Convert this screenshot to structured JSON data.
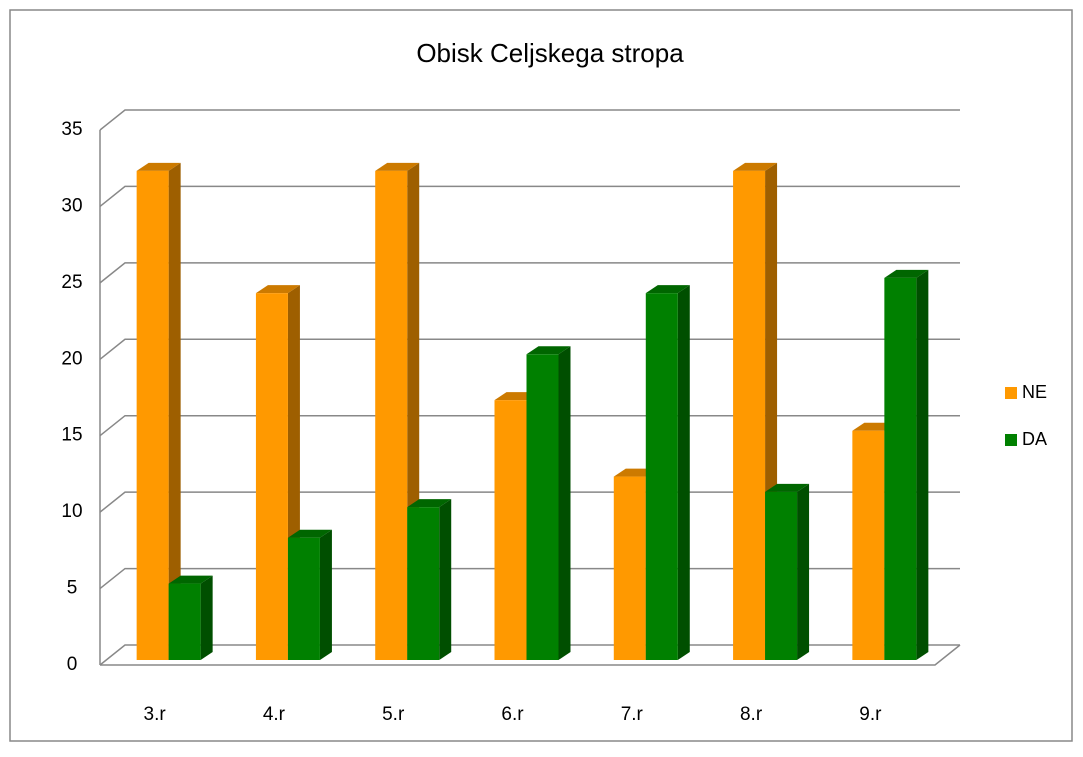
{
  "chart_data": {
    "type": "bar3d",
    "title": "Obisk Celjskega stropa",
    "categories": [
      "3.r",
      "4.r",
      "5.r",
      "6.r",
      "7.r",
      "8.r",
      "9.r"
    ],
    "series": [
      {
        "name": "NE",
        "color": "#ff9900",
        "values": [
          32,
          24,
          32,
          17,
          12,
          32,
          15
        ]
      },
      {
        "name": "DA",
        "color": "#008000",
        "values": [
          5,
          8,
          10,
          20,
          24,
          11,
          25
        ]
      }
    ],
    "ylim": [
      0,
      35
    ],
    "yticks": [
      0,
      5,
      10,
      15,
      20,
      25,
      30,
      35
    ],
    "grid": true,
    "legend": "right"
  }
}
